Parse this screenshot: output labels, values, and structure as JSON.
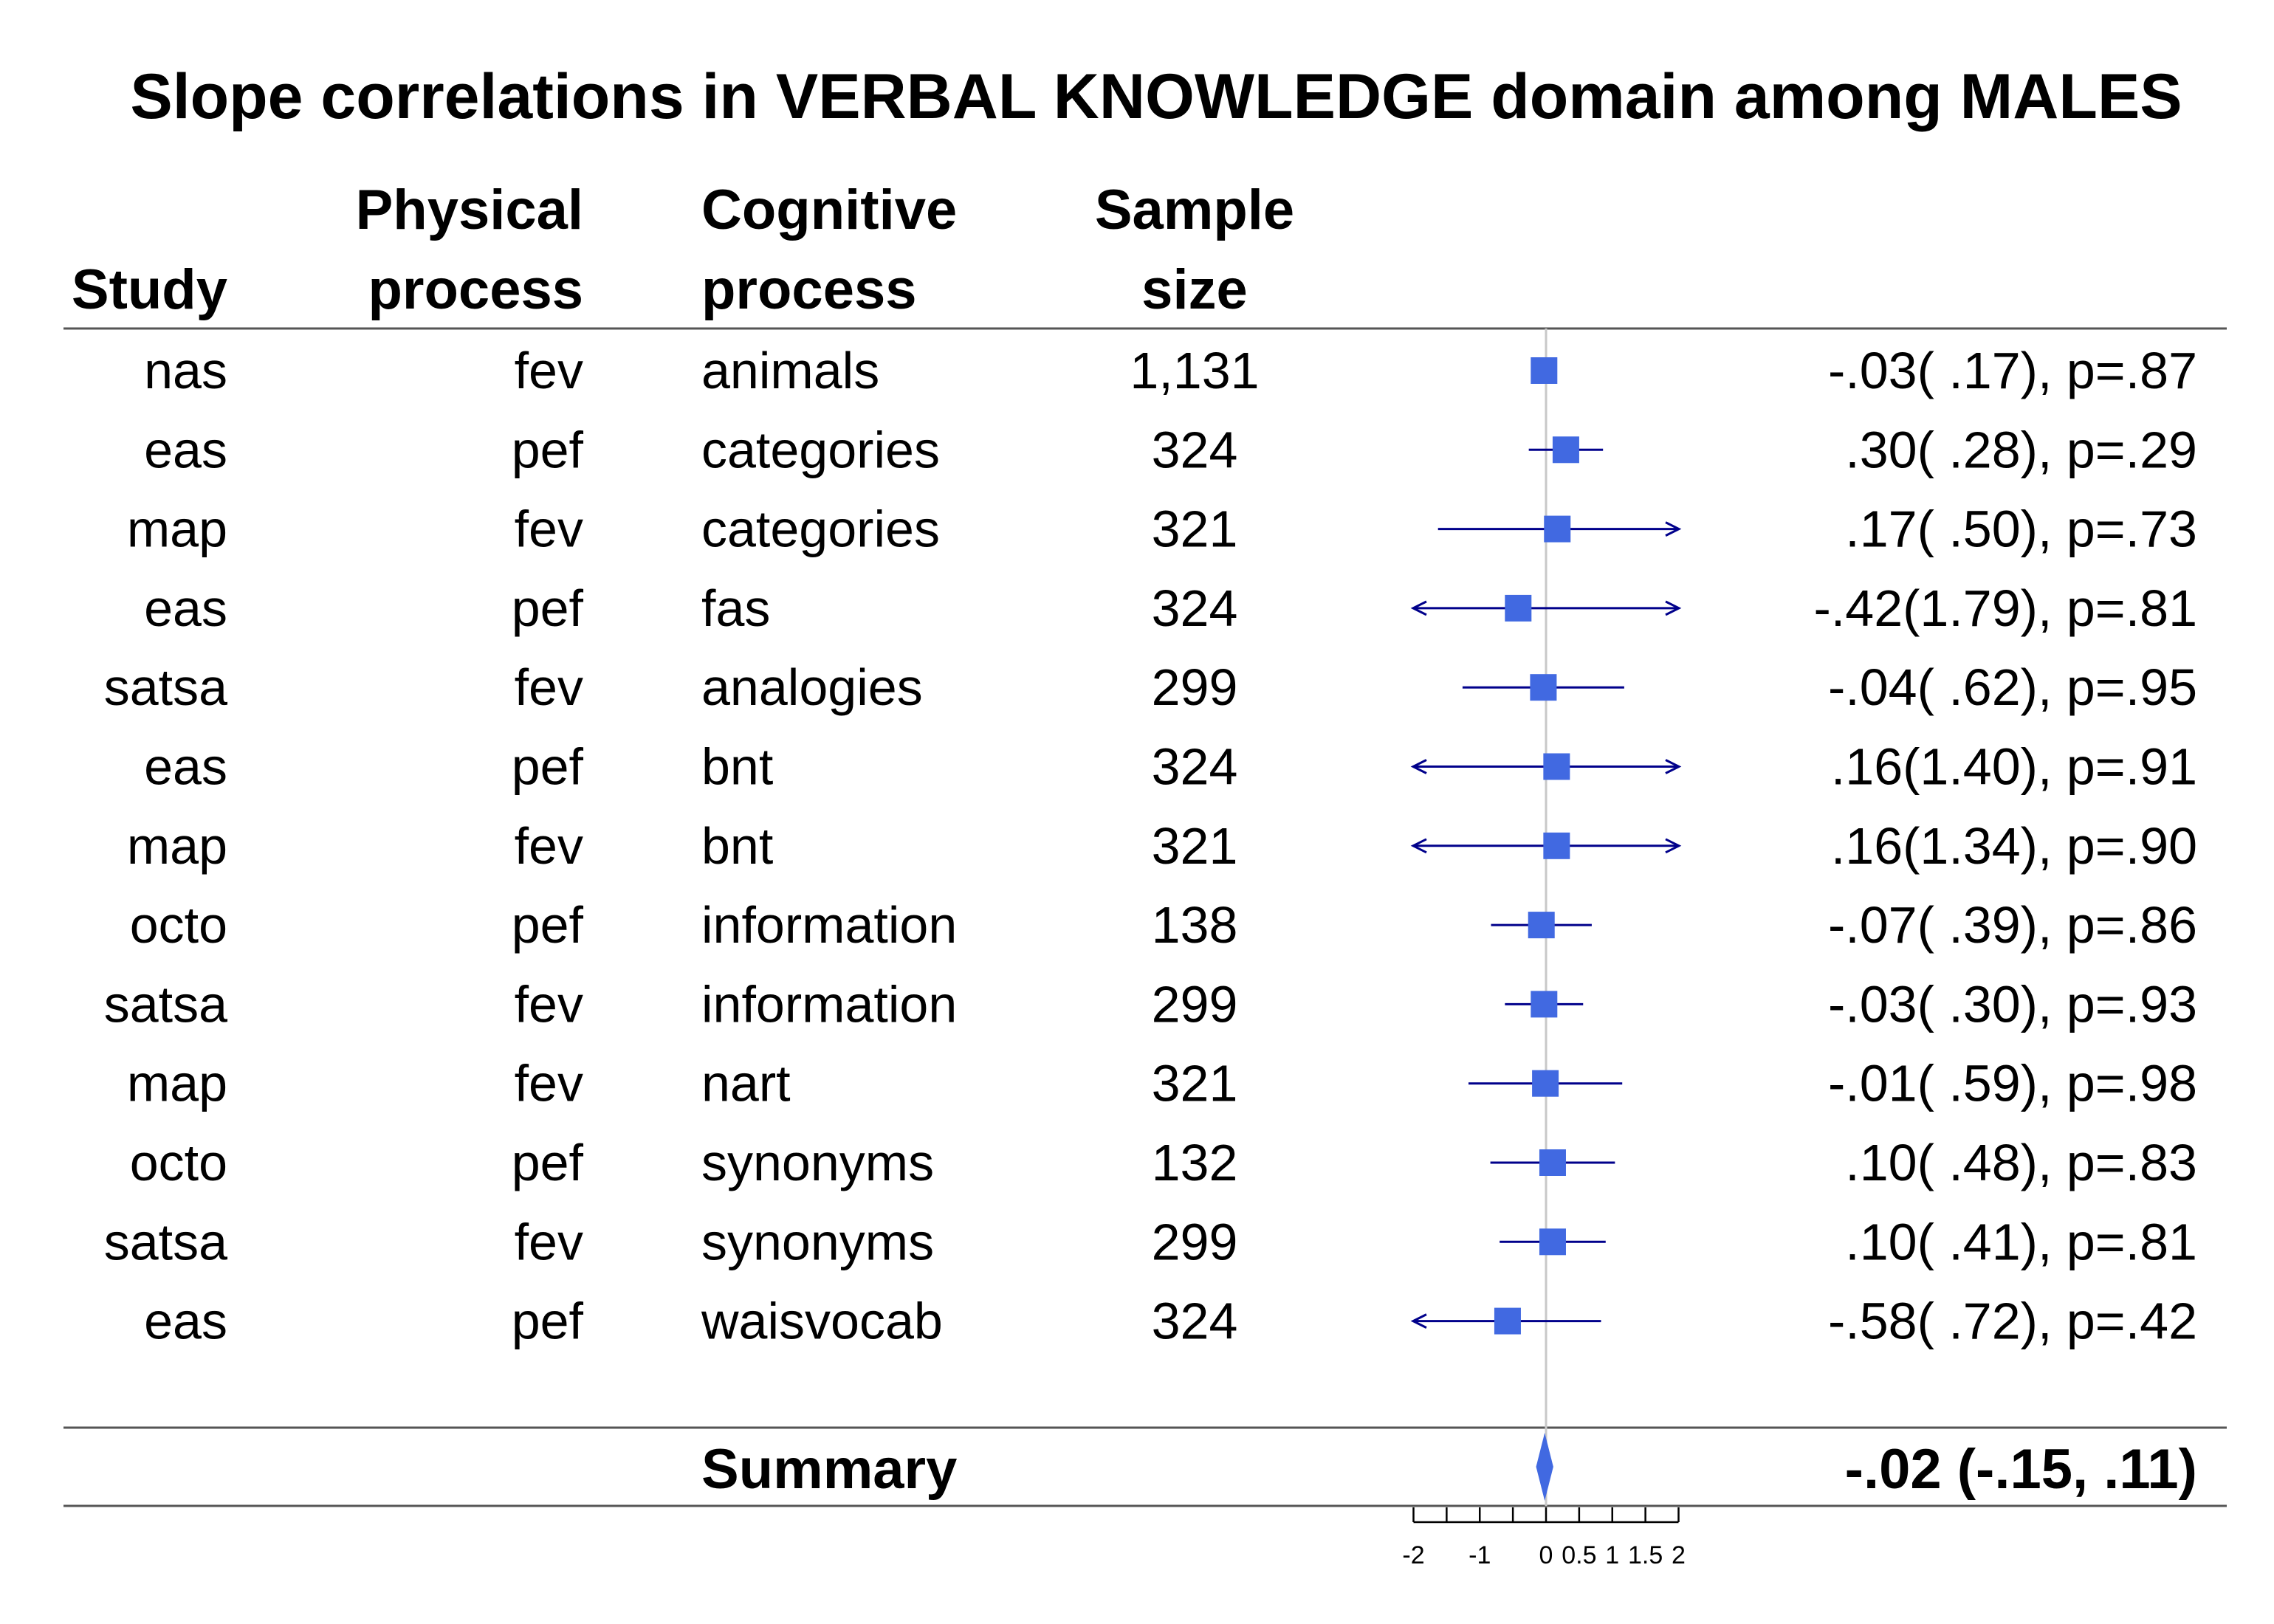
{
  "chart_data": {
    "type": "forest",
    "title": "Slope correlations in VERBAL KNOWLEDGE domain among MALES",
    "columns": [
      {
        "line1": "",
        "line2": "Study"
      },
      {
        "line1": "Physical",
        "line2": "process"
      },
      {
        "line1": "Cognitive",
        "line2": "process"
      },
      {
        "line1": "Sample",
        "line2": "size"
      }
    ],
    "rows": [
      {
        "study": "nas",
        "physical": "fev",
        "cognitive": "animals",
        "n": "1,131",
        "est": -0.03,
        "lo": -0.2,
        "hi": 0.14,
        "label": "-.03( .17), p=.87"
      },
      {
        "study": "eas",
        "physical": "pef",
        "cognitive": "categories",
        "n": "324",
        "est": 0.3,
        "lo": -0.26,
        "hi": 0.86,
        "label": ".30( .28), p=.29"
      },
      {
        "study": "map",
        "physical": "fev",
        "cognitive": "categories",
        "n": "321",
        "est": 0.17,
        "lo": -1.63,
        "hi": 2.29,
        "label": ".17( .50), p=.73"
      },
      {
        "study": "eas",
        "physical": "pef",
        "cognitive": "fas",
        "n": "324",
        "est": -0.42,
        "lo": -2.4,
        "hi": 2.4,
        "label": "-.42(1.79), p=.81"
      },
      {
        "study": "satsa",
        "physical": "fev",
        "cognitive": "analogies",
        "n": "299",
        "est": -0.04,
        "lo": -1.26,
        "hi": 1.18,
        "label": "-.04( .62), p=.95"
      },
      {
        "study": "eas",
        "physical": "pef",
        "cognitive": "bnt",
        "n": "324",
        "est": 0.16,
        "lo": -2.4,
        "hi": 2.4,
        "label": ".16(1.40), p=.91"
      },
      {
        "study": "map",
        "physical": "fev",
        "cognitive": "bnt",
        "n": "321",
        "est": 0.16,
        "lo": -2.4,
        "hi": 2.4,
        "label": ".16(1.34), p=.90"
      },
      {
        "study": "octo",
        "physical": "pef",
        "cognitive": "information",
        "n": "138",
        "est": -0.07,
        "lo": -0.83,
        "hi": 0.69,
        "label": "-.07( .39), p=.86"
      },
      {
        "study": "satsa",
        "physical": "fev",
        "cognitive": "information",
        "n": "299",
        "est": -0.03,
        "lo": -0.62,
        "hi": 0.56,
        "label": "-.03( .30), p=.93"
      },
      {
        "study": "map",
        "physical": "fev",
        "cognitive": "nart",
        "n": "321",
        "est": -0.01,
        "lo": -1.17,
        "hi": 1.15,
        "label": "-.01( .59), p=.98"
      },
      {
        "study": "octo",
        "physical": "pef",
        "cognitive": "synonyms",
        "n": "132",
        "est": 0.1,
        "lo": -0.84,
        "hi": 1.04,
        "label": ".10( .48), p=.83"
      },
      {
        "study": "satsa",
        "physical": "fev",
        "cognitive": "synonyms",
        "n": "299",
        "est": 0.1,
        "lo": -0.7,
        "hi": 0.9,
        "label": ".10( .41), p=.81"
      },
      {
        "study": "eas",
        "physical": "pef",
        "cognitive": "waisvocab",
        "n": "324",
        "est": -0.58,
        "lo": -2.4,
        "hi": 0.83,
        "label": "-.58( .72), p=.42"
      }
    ],
    "summary": {
      "label": "Summary",
      "est": -0.02,
      "lo": -0.15,
      "hi": 0.11,
      "text": "-.02 (-.15, .11)"
    },
    "xaxis": {
      "range": [
        -2,
        2
      ],
      "ticks": [
        -2,
        -1.5,
        -1,
        -0.5,
        0,
        0.5,
        1,
        1.5,
        2
      ],
      "tick_labels": [
        "-2",
        "-1",
        "0",
        "0.5",
        "1",
        "1.5",
        "2"
      ],
      "tick_label_values": [
        -2,
        -1,
        0,
        0.5,
        1,
        1.5,
        2
      ]
    },
    "colors": {
      "point": "#4169e1",
      "ci": "#00008b",
      "reference_line": "#c8c8c8",
      "rule": "#555555"
    }
  }
}
